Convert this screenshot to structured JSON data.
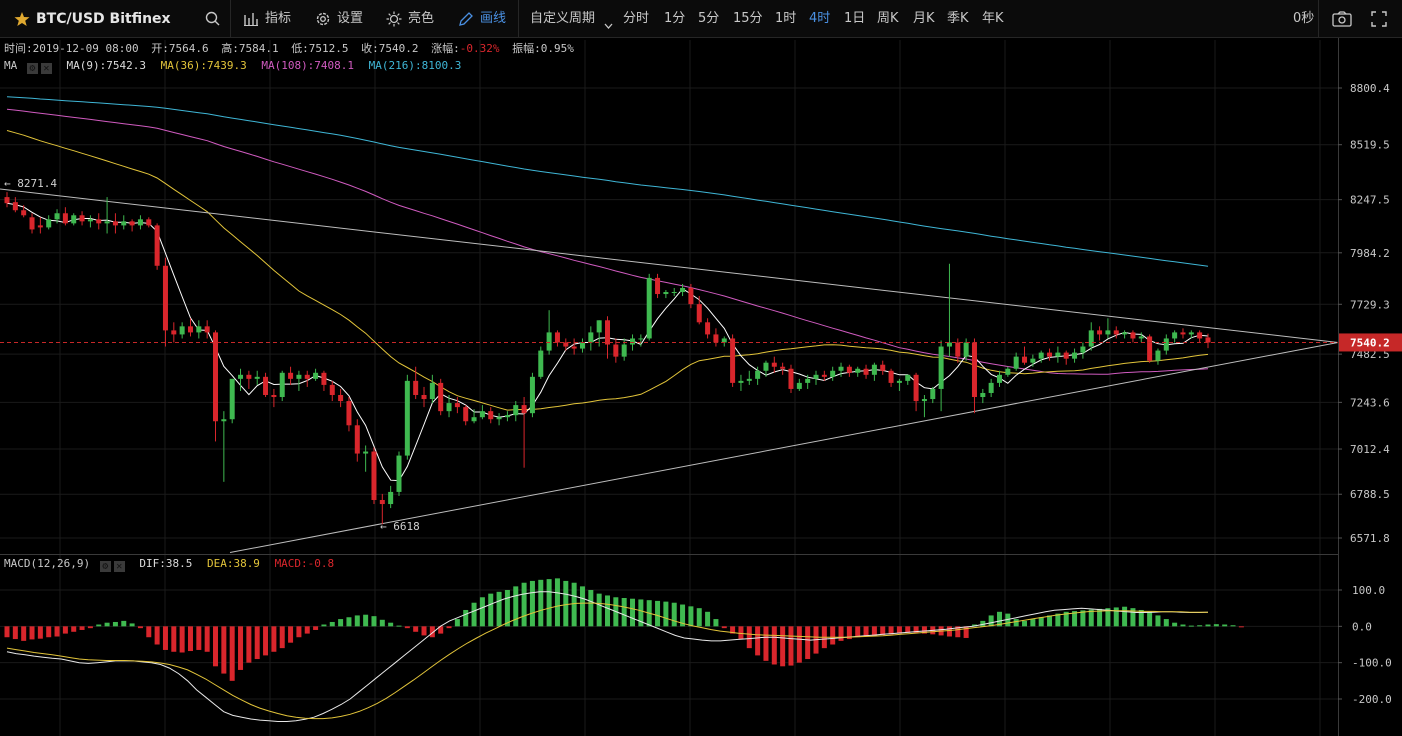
{
  "toolbar": {
    "symbol": "BTC/USD Bitfinex",
    "indicators": "指标",
    "settings": "设置",
    "brightness": "亮色",
    "draw": "画线",
    "custom_period": "自定义周期",
    "periods": [
      "分时",
      "1分",
      "5分",
      "15分",
      "1时",
      "4时",
      "1日",
      "周K",
      "月K",
      "季K",
      "年K"
    ],
    "selected_period": "4时",
    "refresh_timer": "0秒"
  },
  "ohlc_line": {
    "time": "时间:2019-12-09 08:00",
    "open": "开:7564.6",
    "high": "高:7584.1",
    "low": "低:7512.5",
    "close": "收:7540.2",
    "change_label": "涨幅:",
    "change_value": "-0.32%",
    "amplitude": "振幅:0.95%"
  },
  "ma_legend": {
    "label": "MA",
    "ma9": "MA(9):7542.3",
    "ma36": "MA(36):7439.3",
    "ma108": "MA(108):7408.1",
    "ma216": "MA(216):8100.3"
  },
  "macd_legend": {
    "label": "MACD(12,26,9)",
    "dif": "DIF:38.5",
    "dea": "DEA:38.9",
    "macd": "MACD:-0.8"
  },
  "annotations": {
    "high_marker": "8271.4",
    "low_marker": "6618"
  },
  "colors": {
    "up": "#3fb950",
    "down": "#d9262c",
    "ma9": "#ffffff",
    "ma36": "#e2c43a",
    "ma108": "#d05bc0",
    "ma216": "#3fb6d6",
    "dea": "#e2c43a",
    "accent": "#4a90e2"
  },
  "chart_data": {
    "type": "candlestick",
    "price_axis": {
      "ticks": [
        8800.4,
        8519.5,
        8247.5,
        7984.2,
        7729.3,
        7482.5,
        7243.6,
        7012.4,
        6788.5,
        6571.8
      ],
      "tick_labels": [
        "8800.4",
        "8519.5",
        "8247.5",
        "7984.2",
        "7729.3",
        "7482.5",
        "7243.6",
        "7012.4",
        "6788.5",
        "6571.8"
      ],
      "last_price": "7540.2"
    },
    "macd_axis": {
      "ticks": [
        100,
        0,
        -100,
        -200
      ],
      "tick_labels": [
        "100.0",
        "0.0",
        "-100.0",
        "-200.0"
      ]
    },
    "candles": [
      [
        8260,
        8285,
        8230,
        8210
      ],
      [
        8235,
        8260,
        8195,
        8185
      ],
      [
        8195,
        8220,
        8170,
        8160
      ],
      [
        8160,
        8180,
        8100,
        8080
      ],
      [
        8120,
        8160,
        8110,
        8080
      ],
      [
        8110,
        8170,
        8150,
        8100
      ],
      [
        8150,
        8200,
        8180,
        8130
      ],
      [
        8180,
        8210,
        8130,
        8120
      ],
      [
        8130,
        8180,
        8170,
        8120
      ],
      [
        8170,
        8190,
        8140,
        8120
      ],
      [
        8140,
        8170,
        8150,
        8110
      ],
      [
        8150,
        8180,
        8130,
        8100
      ],
      [
        8130,
        8260,
        8140,
        8080
      ],
      [
        8140,
        8180,
        8120,
        8080
      ],
      [
        8120,
        8170,
        8140,
        8100
      ],
      [
        8140,
        8150,
        8120,
        8090
      ],
      [
        8120,
        8170,
        8150,
        8100
      ],
      [
        8150,
        8160,
        8120,
        8110
      ],
      [
        8120,
        8130,
        7920,
        7900
      ],
      [
        7920,
        7960,
        7600,
        7520
      ],
      [
        7600,
        7640,
        7580,
        7540
      ],
      [
        7580,
        7640,
        7620,
        7560
      ],
      [
        7620,
        7660,
        7590,
        7570
      ],
      [
        7590,
        7650,
        7620,
        7560
      ],
      [
        7620,
        7650,
        7590,
        7560
      ],
      [
        7590,
        7600,
        7150,
        7050
      ],
      [
        7150,
        7200,
        7160,
        6850
      ],
      [
        7160,
        7360,
        7360,
        7140
      ],
      [
        7360,
        7410,
        7380,
        7300
      ],
      [
        7380,
        7400,
        7360,
        7310
      ],
      [
        7360,
        7400,
        7370,
        7330
      ],
      [
        7370,
        7390,
        7280,
        7270
      ],
      [
        7280,
        7310,
        7270,
        7220
      ],
      [
        7270,
        7400,
        7390,
        7250
      ],
      [
        7390,
        7420,
        7360,
        7330
      ],
      [
        7360,
        7400,
        7380,
        7300
      ],
      [
        7380,
        7400,
        7360,
        7320
      ],
      [
        7360,
        7410,
        7390,
        7350
      ],
      [
        7390,
        7400,
        7330,
        7300
      ],
      [
        7330,
        7350,
        7280,
        7250
      ],
      [
        7280,
        7310,
        7250,
        7220
      ],
      [
        7250,
        7270,
        7130,
        7100
      ],
      [
        7130,
        7160,
        6990,
        6950
      ],
      [
        6990,
        7030,
        7000,
        6900
      ],
      [
        7000,
        7020,
        6760,
        6740
      ],
      [
        6760,
        6790,
        6740,
        6640
      ],
      [
        6740,
        6830,
        6800,
        6720
      ],
      [
        6800,
        7000,
        6980,
        6780
      ],
      [
        6980,
        7380,
        7350,
        6960
      ],
      [
        7350,
        7420,
        7280,
        7260
      ],
      [
        7280,
        7320,
        7260,
        7220
      ],
      [
        7260,
        7380,
        7340,
        7240
      ],
      [
        7340,
        7360,
        7200,
        7180
      ],
      [
        7200,
        7280,
        7240,
        7170
      ],
      [
        7240,
        7270,
        7220,
        7190
      ],
      [
        7220,
        7230,
        7150,
        7130
      ],
      [
        7150,
        7210,
        7170,
        7140
      ],
      [
        7170,
        7230,
        7200,
        7160
      ],
      [
        7200,
        7220,
        7160,
        7140
      ],
      [
        7160,
        7190,
        7170,
        7130
      ],
      [
        7170,
        7200,
        7180,
        7150
      ],
      [
        7180,
        7250,
        7230,
        7150
      ],
      [
        7230,
        7270,
        7190,
        6920
      ],
      [
        7190,
        7390,
        7370,
        7170
      ],
      [
        7370,
        7520,
        7500,
        7360
      ],
      [
        7500,
        7700,
        7590,
        7480
      ],
      [
        7590,
        7600,
        7540,
        7520
      ],
      [
        7540,
        7560,
        7520,
        7500
      ],
      [
        7520,
        7560,
        7510,
        7480
      ],
      [
        7510,
        7560,
        7540,
        7490
      ],
      [
        7540,
        7620,
        7590,
        7500
      ],
      [
        7590,
        7650,
        7650,
        7520
      ],
      [
        7650,
        7670,
        7530,
        7460
      ],
      [
        7530,
        7560,
        7470,
        7440
      ],
      [
        7470,
        7560,
        7530,
        7450
      ],
      [
        7530,
        7580,
        7560,
        7500
      ],
      [
        7560,
        7580,
        7560,
        7520
      ],
      [
        7560,
        7880,
        7860,
        7550
      ],
      [
        7860,
        7880,
        7780,
        7760
      ],
      [
        7780,
        7800,
        7790,
        7760
      ],
      [
        7790,
        7810,
        7790,
        7770
      ],
      [
        7790,
        7830,
        7810,
        7770
      ],
      [
        7810,
        7830,
        7730,
        7710
      ],
      [
        7730,
        7770,
        7640,
        7630
      ],
      [
        7640,
        7660,
        7580,
        7560
      ],
      [
        7580,
        7610,
        7540,
        7520
      ],
      [
        7540,
        7570,
        7560,
        7520
      ],
      [
        7560,
        7580,
        7340,
        7320
      ],
      [
        7340,
        7380,
        7350,
        7300
      ],
      [
        7350,
        7400,
        7360,
        7330
      ],
      [
        7360,
        7420,
        7400,
        7330
      ],
      [
        7400,
        7450,
        7440,
        7370
      ],
      [
        7440,
        7470,
        7420,
        7390
      ],
      [
        7420,
        7440,
        7410,
        7380
      ],
      [
        7410,
        7430,
        7310,
        7290
      ],
      [
        7310,
        7360,
        7340,
        7300
      ],
      [
        7340,
        7380,
        7360,
        7310
      ],
      [
        7360,
        7400,
        7380,
        7330
      ],
      [
        7380,
        7400,
        7370,
        7350
      ],
      [
        7370,
        7420,
        7400,
        7350
      ],
      [
        7400,
        7440,
        7420,
        7370
      ],
      [
        7420,
        7430,
        7390,
        7370
      ],
      [
        7390,
        7420,
        7410,
        7370
      ],
      [
        7410,
        7430,
        7380,
        7360
      ],
      [
        7380,
        7440,
        7430,
        7350
      ],
      [
        7430,
        7450,
        7400,
        7380
      ],
      [
        7400,
        7410,
        7340,
        7320
      ],
      [
        7340,
        7360,
        7350,
        7300
      ],
      [
        7350,
        7380,
        7380,
        7330
      ],
      [
        7380,
        7390,
        7250,
        7200
      ],
      [
        7250,
        7280,
        7260,
        7170
      ],
      [
        7260,
        7320,
        7310,
        7240
      ],
      [
        7310,
        7550,
        7520,
        7200
      ],
      [
        7520,
        7930,
        7540,
        7470
      ],
      [
        7540,
        7560,
        7470,
        7440
      ],
      [
        7470,
        7560,
        7540,
        7450
      ],
      [
        7540,
        7560,
        7270,
        7190
      ],
      [
        7270,
        7310,
        7290,
        7240
      ],
      [
        7290,
        7360,
        7340,
        7270
      ],
      [
        7340,
        7400,
        7380,
        7320
      ],
      [
        7380,
        7420,
        7410,
        7370
      ],
      [
        7410,
        7490,
        7470,
        7400
      ],
      [
        7470,
        7520,
        7440,
        7430
      ],
      [
        7440,
        7480,
        7460,
        7420
      ],
      [
        7460,
        7500,
        7490,
        7440
      ],
      [
        7490,
        7510,
        7470,
        7450
      ],
      [
        7470,
        7520,
        7490,
        7440
      ],
      [
        7490,
        7500,
        7460,
        7430
      ],
      [
        7460,
        7510,
        7490,
        7440
      ],
      [
        7490,
        7540,
        7520,
        7460
      ],
      [
        7520,
        7640,
        7600,
        7500
      ],
      [
        7600,
        7620,
        7580,
        7550
      ],
      [
        7580,
        7660,
        7600,
        7560
      ],
      [
        7600,
        7620,
        7580,
        7560
      ],
      [
        7580,
        7600,
        7590,
        7560
      ],
      [
        7590,
        7600,
        7560,
        7540
      ],
      [
        7560,
        7590,
        7570,
        7540
      ],
      [
        7570,
        7580,
        7450,
        7440
      ],
      [
        7450,
        7510,
        7500,
        7430
      ],
      [
        7500,
        7580,
        7560,
        7480
      ],
      [
        7560,
        7600,
        7590,
        7540
      ],
      [
        7590,
        7610,
        7580,
        7560
      ],
      [
        7580,
        7600,
        7590,
        7560
      ],
      [
        7590,
        7600,
        7560,
        7540
      ],
      [
        7565,
        7584,
        7540,
        7512
      ]
    ],
    "macd_hist": [
      -30,
      -35,
      -40,
      -36,
      -34,
      -30,
      -28,
      -20,
      -15,
      -10,
      -5,
      5,
      10,
      12,
      15,
      8,
      -5,
      -30,
      -50,
      -65,
      -70,
      -72,
      -68,
      -65,
      -70,
      -110,
      -130,
      -150,
      -120,
      -100,
      -90,
      -80,
      -70,
      -60,
      -45,
      -30,
      -20,
      -10,
      5,
      12,
      20,
      25,
      30,
      32,
      28,
      18,
      10,
      2,
      -5,
      -15,
      -25,
      -30,
      -20,
      -5,
      20,
      45,
      65,
      80,
      90,
      95,
      100,
      110,
      120,
      125,
      128,
      130,
      132,
      125,
      120,
      110,
      100,
      90,
      85,
      80,
      78,
      76,
      74,
      72,
      70,
      68,
      65,
      60,
      55,
      50,
      40,
      20,
      -5,
      -20,
      -35,
      -60,
      -80,
      -95,
      -105,
      -110,
      -108,
      -100,
      -90,
      -75,
      -60,
      -50,
      -40,
      -35,
      -30,
      -28,
      -26,
      -24,
      -22,
      -20,
      -18,
      -18,
      -20,
      -22,
      -25,
      -28,
      -30,
      -32,
      5,
      15,
      30,
      40,
      35,
      20,
      15,
      20,
      25,
      30,
      35,
      40,
      42,
      44,
      46,
      48,
      50,
      52,
      54,
      50,
      45,
      40,
      30,
      20,
      10,
      5,
      2,
      3,
      5,
      6,
      5,
      3,
      -1
    ],
    "dif": [
      -70,
      -75,
      -78,
      -82,
      -85,
      -88,
      -90,
      -95,
      -100,
      -102,
      -100,
      -98,
      -95,
      -95,
      -95,
      -98,
      -100,
      -105,
      -115,
      -130,
      -150,
      -175,
      -195,
      -215,
      -235,
      -245,
      -250,
      -255,
      -258,
      -260,
      -262,
      -262,
      -260,
      -256,
      -250,
      -240,
      -228,
      -215,
      -200,
      -180,
      -160,
      -140,
      -120,
      -100,
      -80,
      -60,
      -40,
      -20,
      0,
      15,
      25,
      35,
      45,
      55,
      65,
      75,
      82,
      88,
      92,
      95,
      95,
      92,
      88,
      82,
      75,
      65,
      55,
      45,
      35,
      25,
      15,
      5,
      -5,
      -15,
      -25,
      -32,
      -35,
      -38,
      -40,
      -40,
      -38,
      -36,
      -34,
      -32,
      -30,
      -30,
      -32,
      -34,
      -36,
      -38,
      -36,
      -34,
      -32,
      -30,
      -28,
      -26,
      -24,
      -22,
      -20,
      -18,
      -16,
      -14,
      -12,
      -10,
      -8,
      -5,
      -2,
      0,
      5,
      10,
      15,
      20,
      25,
      30,
      35,
      40,
      44,
      46,
      48,
      50,
      48,
      46,
      44,
      42,
      40,
      38,
      38,
      39,
      40,
      40,
      39,
      38,
      38,
      38.5
    ],
    "dea": [
      -60,
      -64,
      -68,
      -72,
      -75,
      -78,
      -82,
      -86,
      -90,
      -92,
      -93,
      -94,
      -94,
      -94,
      -95,
      -96,
      -98,
      -101,
      -105,
      -112,
      -120,
      -132,
      -145,
      -160,
      -175,
      -190,
      -203,
      -215,
      -225,
      -233,
      -240,
      -246,
      -250,
      -253,
      -254,
      -254,
      -252,
      -248,
      -242,
      -234,
      -224,
      -212,
      -198,
      -182,
      -165,
      -148,
      -130,
      -112,
      -94,
      -77,
      -61,
      -46,
      -32,
      -19,
      -7,
      5,
      16,
      26,
      35,
      43,
      50,
      56,
      60,
      63,
      64,
      64,
      62,
      59,
      55,
      50,
      44,
      37,
      30,
      22,
      14,
      7,
      1,
      -4,
      -9,
      -13,
      -16,
      -19,
      -21,
      -23,
      -24,
      -25,
      -26,
      -27,
      -28,
      -29,
      -30,
      -30,
      -30,
      -30,
      -29,
      -28,
      -27,
      -26,
      -24,
      -22,
      -20,
      -18,
      -16,
      -14,
      -12,
      -10,
      -7,
      -4,
      -1,
      2,
      6,
      10,
      14,
      18,
      22,
      26,
      30,
      33,
      36,
      39,
      41,
      42,
      43,
      43,
      43,
      42,
      41,
      41,
      40,
      40,
      40,
      39,
      39,
      38.9
    ],
    "ma_series": {
      "MA(9)": "7542.3",
      "MA(36)": "7439.3",
      "MA(108)": "7408.1",
      "MA(216)": "8100.3"
    }
  }
}
